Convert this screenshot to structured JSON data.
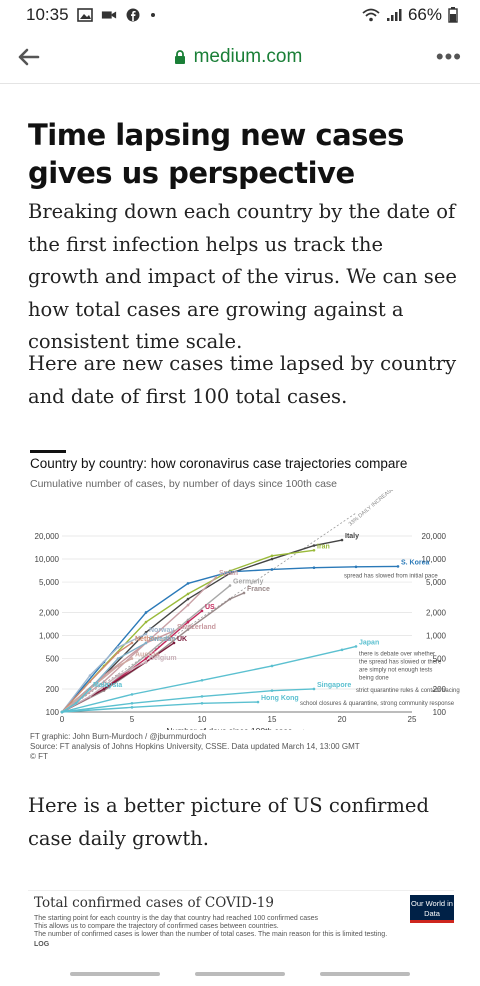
{
  "status": {
    "time": "10:35",
    "battery": "66%"
  },
  "browser": {
    "domain": "medium.com"
  },
  "article": {
    "title": "Time lapsing new cases gives us perspective",
    "paragraphs": [
      "Breaking down each country by the date of the first infection helps us track the growth and impact of the virus. We can see how total cases are growing against a consistent time scale.",
      "Here are new cases time lapsed by country and date of first 100 total cases.",
      "Here is a better picture of US confirmed case daily growth."
    ]
  },
  "chart_data": {
    "type": "line",
    "title": "Country by country: how coronavirus case trajectories compare",
    "subtitle": "Cumulative number of cases, by number of days since 100th case",
    "xlabel": "Number of days since 100th case",
    "yscale": "log",
    "xlim": [
      0,
      25
    ],
    "ylim": [
      100,
      20000
    ],
    "x_ticks": [
      "0",
      "5",
      "10",
      "15",
      "20",
      "25"
    ],
    "y_ticks": [
      "100",
      "200",
      "500",
      "1,000",
      "2,000",
      "5,000",
      "10,000",
      "20,000"
    ],
    "reference_line": "33% DAILY INCREASE",
    "series": [
      {
        "name": "Italy",
        "color": "#444444",
        "x": [
          0,
          3,
          6,
          9,
          12,
          15,
          18,
          20
        ],
        "y": [
          100,
          300,
          1100,
          3000,
          6500,
          10000,
          15000,
          17700
        ]
      },
      {
        "name": "Iran",
        "color": "#9aba3a",
        "x": [
          0,
          3,
          6,
          9,
          12,
          15,
          18
        ],
        "y": [
          100,
          400,
          1500,
          3500,
          7000,
          11000,
          13000
        ]
      },
      {
        "name": "S. Korea",
        "color": "#2a79b8",
        "x": [
          0,
          3,
          6,
          9,
          12,
          15,
          18,
          21,
          24
        ],
        "y": [
          100,
          450,
          2000,
          4800,
          6800,
          7300,
          7700,
          7900,
          8000
        ]
      },
      {
        "name": "Spain",
        "color": "#c9a0a6",
        "x": [
          0,
          3,
          6,
          9,
          11
        ],
        "y": [
          100,
          250,
          800,
          2500,
          5800
        ]
      },
      {
        "name": "Germany",
        "color": "#a8a8a8",
        "x": [
          0,
          3,
          6,
          9,
          12
        ],
        "y": [
          100,
          200,
          550,
          1600,
          4500
        ]
      },
      {
        "name": "France",
        "color": "#9a8a8a",
        "x": [
          0,
          3,
          6,
          9,
          12,
          13
        ],
        "y": [
          100,
          190,
          450,
          1200,
          3000,
          3600
        ]
      },
      {
        "name": "US",
        "color": "#c2285b",
        "x": [
          0,
          3,
          6,
          9,
          10
        ],
        "y": [
          100,
          200,
          500,
          1500,
          2100
        ]
      },
      {
        "name": "Switzerland",
        "color": "#c89aa0",
        "x": [
          0,
          3,
          6,
          8
        ],
        "y": [
          100,
          300,
          800,
          1150
        ]
      },
      {
        "name": "Norway",
        "color": "#a0b8d0",
        "x": [
          0,
          2,
          4,
          6
        ],
        "y": [
          100,
          300,
          700,
          1050
        ]
      },
      {
        "name": "Netherlands",
        "color": "#d08a70",
        "x": [
          0,
          2,
          4,
          5
        ],
        "y": [
          100,
          250,
          600,
          800
        ]
      },
      {
        "name": "Sweden",
        "color": "#7fb0c8",
        "x": [
          0,
          2,
          4,
          6
        ],
        "y": [
          100,
          200,
          500,
          800
        ]
      },
      {
        "name": "UK",
        "color": "#7a1a3a",
        "x": [
          0,
          3,
          6,
          8
        ],
        "y": [
          100,
          200,
          450,
          800
        ]
      },
      {
        "name": "Austria",
        "color": "#d0a8a0",
        "x": [
          0,
          2,
          4,
          5
        ],
        "y": [
          100,
          200,
          400,
          500
        ]
      },
      {
        "name": "Belgium",
        "color": "#c8b0b8",
        "x": [
          0,
          2,
          4,
          6
        ],
        "y": [
          100,
          160,
          300,
          450
        ]
      },
      {
        "name": "Japan",
        "color": "#5bc0d0",
        "x": [
          0,
          5,
          10,
          15,
          20,
          21
        ],
        "y": [
          100,
          170,
          260,
          400,
          650,
          720
        ]
      },
      {
        "name": "Malaysia",
        "color": "#5bc0d0",
        "x": [
          0,
          1,
          2
        ],
        "y": [
          100,
          130,
          200
        ]
      },
      {
        "name": "Singapore",
        "color": "#5bc0d0",
        "x": [
          0,
          5,
          10,
          15,
          18
        ],
        "y": [
          100,
          130,
          160,
          190,
          200
        ]
      },
      {
        "name": "Hong Kong",
        "color": "#5bc0d0",
        "x": [
          0,
          5,
          10,
          14
        ],
        "y": [
          100,
          115,
          130,
          135
        ]
      }
    ],
    "annotations": [
      "spread has slowed from initial pace",
      "there is debate over whether the spread has slowed or there are simply not enough tests being done",
      "strict quarantine rules & contact tracing",
      "school closures & quarantine, strong community response"
    ],
    "footer": [
      "FT graphic: John Burn-Murdoch / @jburnmurdoch",
      "Source: FT analysis of Johns Hopkins University, CSSE. Data updated March 14, 13:00 GMT",
      "© FT"
    ]
  },
  "owid": {
    "title": "Total confirmed cases of COVID-19",
    "lines": [
      "The starting point for each country is the day that country had reached 100 confirmed cases",
      "This allows us to compare the trajectory of confirmed cases between countries.",
      "The number of confirmed cases is lower than the number of total cases. The main reason for this is limited testing."
    ],
    "scale": "LOG",
    "logo": "Our World in Data"
  }
}
